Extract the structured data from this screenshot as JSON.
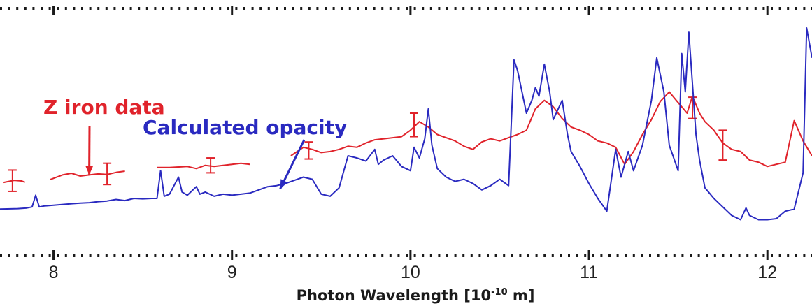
{
  "chart_data": {
    "type": "line",
    "title": "",
    "xlabel": {
      "pre": "Photon Wavelength [10",
      "sup": "-10",
      "post": " m]"
    },
    "ylabel": "",
    "xlim": [
      7.7,
      12.25
    ],
    "ylim": [
      0,
      1
    ],
    "x_ticks": [
      8,
      9,
      10,
      11,
      12
    ],
    "grid": false,
    "legend": "none",
    "colors": {
      "red": "#e0232b",
      "blue": "#2a2ac0",
      "frame": "#1a1a1a"
    },
    "annotations": [
      {
        "text": "Z iron data",
        "color": "#e0232b",
        "arrow_to": [
          8.2,
          0.31
        ]
      },
      {
        "text": "Calculated opacity",
        "color": "#2a2ac0",
        "arrow_to": [
          9.27,
          0.245
        ]
      }
    ],
    "series": [
      {
        "color": "#e0232b",
        "segments": [
          [
            [
              7.72,
              0.275
            ],
            [
              7.75,
              0.28
            ],
            [
              7.78,
              0.285
            ],
            [
              7.82,
              0.282
            ],
            [
              7.84,
              0.276
            ]
          ],
          [
            [
              7.98,
              0.288
            ],
            [
              8.05,
              0.31
            ],
            [
              8.1,
              0.318
            ],
            [
              8.15,
              0.305
            ],
            [
              8.2,
              0.31
            ],
            [
              8.25,
              0.315
            ],
            [
              8.3,
              0.312
            ],
            [
              8.35,
              0.322
            ],
            [
              8.4,
              0.328
            ]
          ],
          [
            [
              8.58,
              0.345
            ],
            [
              8.65,
              0.345
            ],
            [
              8.75,
              0.35
            ],
            [
              8.8,
              0.34
            ],
            [
              8.85,
              0.355
            ],
            [
              8.9,
              0.35
            ],
            [
              8.95,
              0.355
            ],
            [
              9.0,
              0.36
            ],
            [
              9.05,
              0.365
            ],
            [
              9.1,
              0.36
            ]
          ],
          [
            [
              9.33,
              0.4
            ],
            [
              9.4,
              0.44
            ],
            [
              9.45,
              0.43
            ],
            [
              9.5,
              0.415
            ],
            [
              9.55,
              0.42
            ],
            [
              9.6,
              0.43
            ],
            [
              9.65,
              0.445
            ],
            [
              9.7,
              0.44
            ],
            [
              9.75,
              0.46
            ],
            [
              9.8,
              0.475
            ],
            [
              9.85,
              0.48
            ],
            [
              9.9,
              0.485
            ],
            [
              9.95,
              0.49
            ],
            [
              10.0,
              0.52
            ],
            [
              10.05,
              0.56
            ],
            [
              10.1,
              0.535
            ],
            [
              10.15,
              0.5
            ],
            [
              10.2,
              0.485
            ],
            [
              10.25,
              0.47
            ],
            [
              10.3,
              0.445
            ],
            [
              10.35,
              0.43
            ],
            [
              10.4,
              0.465
            ],
            [
              10.45,
              0.48
            ],
            [
              10.5,
              0.47
            ],
            [
              10.55,
              0.485
            ],
            [
              10.6,
              0.5
            ],
            [
              10.65,
              0.52
            ],
            [
              10.7,
              0.62
            ],
            [
              10.75,
              0.66
            ],
            [
              10.8,
              0.63
            ],
            [
              10.85,
              0.575
            ],
            [
              10.9,
              0.535
            ],
            [
              10.95,
              0.52
            ],
            [
              11.0,
              0.5
            ],
            [
              11.05,
              0.47
            ],
            [
              11.1,
              0.46
            ],
            [
              11.15,
              0.44
            ],
            [
              11.2,
              0.36
            ],
            [
              11.25,
              0.42
            ],
            [
              11.3,
              0.5
            ],
            [
              11.35,
              0.57
            ],
            [
              11.4,
              0.655
            ],
            [
              11.45,
              0.7
            ],
            [
              11.5,
              0.65
            ],
            [
              11.55,
              0.6
            ],
            [
              11.58,
              0.68
            ],
            [
              11.62,
              0.6
            ],
            [
              11.65,
              0.56
            ],
            [
              11.7,
              0.52
            ],
            [
              11.75,
              0.46
            ],
            [
              11.8,
              0.43
            ],
            [
              11.85,
              0.42
            ],
            [
              11.9,
              0.38
            ],
            [
              11.95,
              0.37
            ],
            [
              12.0,
              0.35
            ],
            [
              12.05,
              0.36
            ],
            [
              12.1,
              0.37
            ],
            [
              12.15,
              0.565
            ],
            [
              12.2,
              0.47
            ],
            [
              12.25,
              0.4
            ]
          ]
        ],
        "error_bars": [
          [
            7.77,
            0.283,
            0.05
          ],
          [
            8.3,
            0.315,
            0.05
          ],
          [
            8.88,
            0.355,
            0.035
          ],
          [
            9.43,
            0.425,
            0.04
          ],
          [
            10.02,
            0.545,
            0.055
          ],
          [
            11.58,
            0.625,
            0.05
          ],
          [
            11.75,
            0.45,
            0.07
          ]
        ]
      },
      {
        "color": "#2a2ac0",
        "points": [
          [
            7.7,
            0.15
          ],
          [
            7.8,
            0.152
          ],
          [
            7.85,
            0.155
          ],
          [
            7.88,
            0.16
          ],
          [
            7.9,
            0.215
          ],
          [
            7.92,
            0.16
          ],
          [
            7.95,
            0.165
          ],
          [
            8.0,
            0.168
          ],
          [
            8.1,
            0.175
          ],
          [
            8.15,
            0.178
          ],
          [
            8.2,
            0.18
          ],
          [
            8.25,
            0.185
          ],
          [
            8.3,
            0.188
          ],
          [
            8.35,
            0.195
          ],
          [
            8.4,
            0.19
          ],
          [
            8.45,
            0.2
          ],
          [
            8.5,
            0.198
          ],
          [
            8.55,
            0.2
          ],
          [
            8.58,
            0.2
          ],
          [
            8.6,
            0.33
          ],
          [
            8.62,
            0.21
          ],
          [
            8.65,
            0.22
          ],
          [
            8.7,
            0.3
          ],
          [
            8.72,
            0.23
          ],
          [
            8.75,
            0.215
          ],
          [
            8.8,
            0.255
          ],
          [
            8.82,
            0.22
          ],
          [
            8.85,
            0.23
          ],
          [
            8.9,
            0.21
          ],
          [
            8.95,
            0.22
          ],
          [
            9.0,
            0.215
          ],
          [
            9.05,
            0.22
          ],
          [
            9.1,
            0.225
          ],
          [
            9.15,
            0.24
          ],
          [
            9.2,
            0.255
          ],
          [
            9.25,
            0.26
          ],
          [
            9.3,
            0.27
          ],
          [
            9.35,
            0.285
          ],
          [
            9.4,
            0.3
          ],
          [
            9.45,
            0.29
          ],
          [
            9.5,
            0.22
          ],
          [
            9.55,
            0.21
          ],
          [
            9.6,
            0.25
          ],
          [
            9.65,
            0.4
          ],
          [
            9.7,
            0.39
          ],
          [
            9.75,
            0.375
          ],
          [
            9.8,
            0.43
          ],
          [
            9.82,
            0.36
          ],
          [
            9.85,
            0.38
          ],
          [
            9.9,
            0.4
          ],
          [
            9.95,
            0.35
          ],
          [
            10.0,
            0.33
          ],
          [
            10.02,
            0.44
          ],
          [
            10.05,
            0.39
          ],
          [
            10.08,
            0.48
          ],
          [
            10.1,
            0.62
          ],
          [
            10.12,
            0.45
          ],
          [
            10.15,
            0.34
          ],
          [
            10.2,
            0.3
          ],
          [
            10.25,
            0.28
          ],
          [
            10.3,
            0.29
          ],
          [
            10.35,
            0.27
          ],
          [
            10.4,
            0.24
          ],
          [
            10.45,
            0.26
          ],
          [
            10.5,
            0.29
          ],
          [
            10.55,
            0.26
          ],
          [
            10.58,
            0.85
          ],
          [
            10.6,
            0.8
          ],
          [
            10.65,
            0.6
          ],
          [
            10.68,
            0.66
          ],
          [
            10.7,
            0.72
          ],
          [
            10.72,
            0.68
          ],
          [
            10.75,
            0.83
          ],
          [
            10.78,
            0.7
          ],
          [
            10.8,
            0.57
          ],
          [
            10.85,
            0.66
          ],
          [
            10.88,
            0.5
          ],
          [
            10.9,
            0.42
          ],
          [
            10.95,
            0.35
          ],
          [
            11.0,
            0.27
          ],
          [
            11.05,
            0.2
          ],
          [
            11.1,
            0.14
          ],
          [
            11.15,
            0.43
          ],
          [
            11.18,
            0.3
          ],
          [
            11.22,
            0.42
          ],
          [
            11.25,
            0.33
          ],
          [
            11.3,
            0.45
          ],
          [
            11.35,
            0.66
          ],
          [
            11.38,
            0.86
          ],
          [
            11.42,
            0.7
          ],
          [
            11.45,
            0.45
          ],
          [
            11.5,
            0.33
          ],
          [
            11.52,
            0.88
          ],
          [
            11.54,
            0.7
          ],
          [
            11.56,
            0.98
          ],
          [
            11.6,
            0.5
          ],
          [
            11.62,
            0.38
          ],
          [
            11.65,
            0.25
          ],
          [
            11.7,
            0.2
          ],
          [
            11.75,
            0.16
          ],
          [
            11.8,
            0.12
          ],
          [
            11.85,
            0.1
          ],
          [
            11.88,
            0.155
          ],
          [
            11.9,
            0.12
          ],
          [
            11.95,
            0.1
          ],
          [
            12.0,
            0.1
          ],
          [
            12.05,
            0.105
          ],
          [
            12.1,
            0.14
          ],
          [
            12.15,
            0.15
          ],
          [
            12.2,
            0.32
          ],
          [
            12.22,
            1.0
          ],
          [
            12.25,
            0.86
          ]
        ]
      }
    ]
  }
}
